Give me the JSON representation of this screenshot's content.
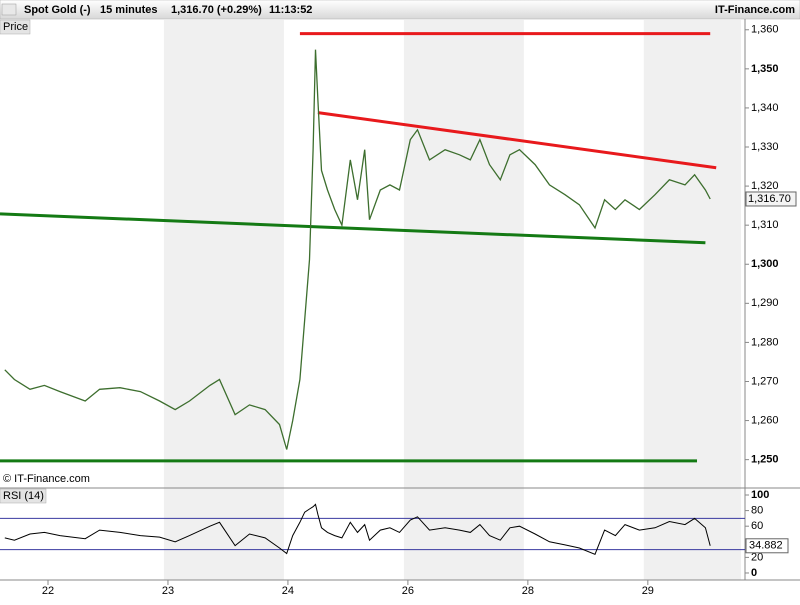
{
  "header": {
    "instrument": "Spot Gold (-)",
    "interval": "15 minutes",
    "quote": "1,316.70 (+0.29%)",
    "time": "11:13:52",
    "site": "IT-Finance.com"
  },
  "chart_data": [
    {
      "type": "line",
      "panel_label": "Price",
      "watermark": "© IT-Finance.com",
      "color": "#3d6e2e",
      "x": [
        -0.36,
        -0.28,
        -0.15,
        -0.03,
        0.1,
        0.31,
        0.43,
        0.6,
        0.77,
        0.93,
        1.06,
        1.18,
        1.35,
        1.43,
        1.56,
        1.68,
        1.81,
        1.93,
        1.99,
        2.04,
        2.1,
        2.14,
        2.18,
        2.21,
        2.23,
        2.25,
        2.28,
        2.33,
        2.39,
        2.45,
        2.52,
        2.58,
        2.64,
        2.68,
        2.77,
        2.85,
        2.93,
        3.02,
        3.08,
        3.18,
        3.31,
        3.43,
        3.52,
        3.6,
        3.68,
        3.77,
        3.85,
        3.93,
        4.06,
        4.18,
        4.31,
        4.43,
        4.56,
        4.64,
        4.73,
        4.81,
        4.93,
        5.06,
        5.18,
        5.31,
        5.39,
        5.48,
        5.52
      ],
      "values": [
        1273,
        1270.5,
        1268,
        1269,
        1267.4,
        1265,
        1268,
        1268.4,
        1267.4,
        1265,
        1262.8,
        1265,
        1269,
        1270.5,
        1261.5,
        1264,
        1262.8,
        1259,
        1252.6,
        1260,
        1270.5,
        1285.8,
        1301.2,
        1329.3,
        1354.9,
        1342,
        1324,
        1319,
        1314,
        1310,
        1326.7,
        1316.5,
        1329.3,
        1311.4,
        1319,
        1320.3,
        1319,
        1331.9,
        1334.4,
        1326.7,
        1329.3,
        1328,
        1326.7,
        1331.9,
        1325.5,
        1321.6,
        1328,
        1329.3,
        1325.5,
        1320.3,
        1317.8,
        1315.2,
        1309.3,
        1316.5,
        1314,
        1316.5,
        1314,
        1317.8,
        1321.6,
        1320.3,
        1322.9,
        1319,
        1316.7
      ],
      "last_value": {
        "value": 1316.7,
        "label": "1,316.70"
      },
      "xlim": [
        -0.4,
        5.81
      ],
      "xticks": [
        {
          "value": 0,
          "label": "22"
        },
        {
          "value": 1,
          "label": "23"
        },
        {
          "value": 2,
          "label": "24"
        },
        {
          "value": 3,
          "label": "26"
        },
        {
          "value": 4,
          "label": "28"
        },
        {
          "value": 5,
          "label": "29"
        }
      ],
      "ylim": [
        1243,
        1362.5
      ],
      "yticks": [
        {
          "value": 1250,
          "label": "1,250"
        },
        {
          "value": 1260,
          "label": "1,260"
        },
        {
          "value": 1270,
          "label": "1,270"
        },
        {
          "value": 1280,
          "label": "1,280"
        },
        {
          "value": 1290,
          "label": "1,290"
        },
        {
          "value": 1300,
          "label": "1,300"
        },
        {
          "value": 1310,
          "label": "1,310"
        },
        {
          "value": 1320,
          "label": "1,320"
        },
        {
          "value": 1330,
          "label": "1,330"
        },
        {
          "value": 1340,
          "label": "1,340"
        },
        {
          "value": 1350,
          "label": "1,350"
        },
        {
          "value": 1360,
          "label": "1,360"
        }
      ],
      "trendlines": [
        {
          "color": "#e8191c",
          "x": [
            2.1,
            5.52
          ],
          "y": [
            1359,
            1359
          ]
        },
        {
          "color": "#e8191c",
          "x": [
            2.25,
            5.57
          ],
          "y": [
            1338.8,
            1324.7
          ]
        },
        {
          "color": "#147a14",
          "x": [
            -0.4,
            5.48
          ],
          "y": [
            1312.9,
            1305.5
          ]
        },
        {
          "color": "#147a14",
          "x": [
            -0.4,
            5.41
          ],
          "y": [
            1249.7,
            1249.7
          ]
        }
      ]
    },
    {
      "type": "line",
      "panel_label": "RSI (14)",
      "color": "#000000",
      "level_color": "#3a3aa0",
      "values": [
        45,
        42,
        50,
        52,
        48,
        44,
        55,
        52,
        48,
        46,
        40,
        48,
        60,
        65,
        35,
        50,
        45,
        32,
        25,
        48,
        65,
        78,
        82,
        85,
        88,
        75,
        58,
        52,
        48,
        45,
        65,
        52,
        62,
        42,
        55,
        58,
        52,
        68,
        72,
        55,
        58,
        55,
        52,
        62,
        48,
        42,
        58,
        60,
        50,
        40,
        36,
        32,
        24,
        55,
        48,
        62,
        55,
        58,
        66,
        62,
        70,
        58,
        34.882
      ],
      "last_value": 34.882,
      "levels": [
        70,
        30
      ],
      "ylim": [
        -9,
        107.7
      ],
      "yticks": [
        0,
        20,
        60,
        80,
        100
      ]
    }
  ]
}
